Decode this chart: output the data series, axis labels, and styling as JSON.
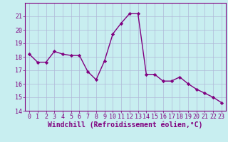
{
  "x": [
    0,
    1,
    2,
    3,
    4,
    5,
    6,
    7,
    8,
    9,
    10,
    11,
    12,
    13,
    14,
    15,
    16,
    17,
    18,
    19,
    20,
    21,
    22,
    23
  ],
  "y": [
    18.2,
    17.6,
    17.6,
    18.4,
    18.2,
    18.1,
    18.1,
    16.9,
    16.3,
    17.7,
    19.7,
    20.5,
    21.2,
    21.2,
    16.7,
    16.7,
    16.2,
    16.2,
    16.5,
    16.0,
    15.6,
    15.3,
    15.0,
    14.6
  ],
  "line_color": "#800080",
  "marker": "D",
  "marker_size": 2.2,
  "bg_color": "#c8eef0",
  "grid_color": "#b0b8d8",
  "xlabel": "Windchill (Refroidissement éolien,°C)",
  "ylim": [
    14,
    22
  ],
  "xlim": [
    -0.5,
    23.5
  ],
  "yticks": [
    14,
    15,
    16,
    17,
    18,
    19,
    20,
    21
  ],
  "xticks": [
    0,
    1,
    2,
    3,
    4,
    5,
    6,
    7,
    8,
    9,
    10,
    11,
    12,
    13,
    14,
    15,
    16,
    17,
    18,
    19,
    20,
    21,
    22,
    23
  ],
  "axis_color": "#800080",
  "tick_label_color": "#800080",
  "xlabel_color": "#800080",
  "line_width": 1.0,
  "tick_fontsize": 6.0,
  "xlabel_fontsize": 7.0
}
